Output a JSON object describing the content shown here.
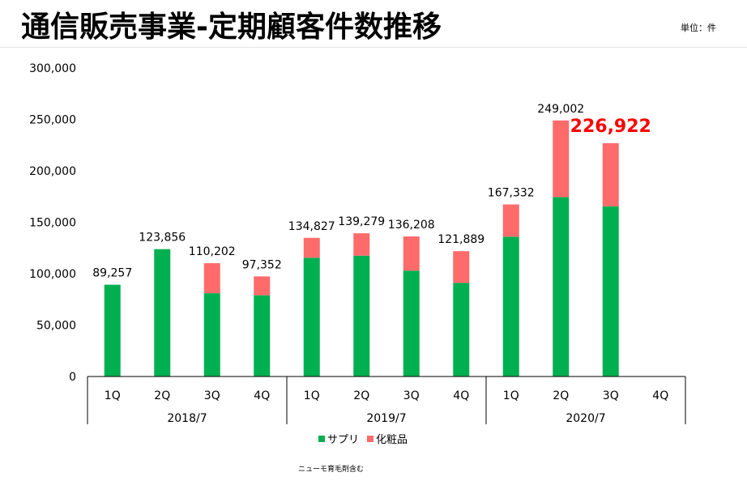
{
  "header": {
    "title": "通信販売事業-定期顧客件数推移",
    "unit": "単位：件"
  },
  "footer": {
    "note": "ニューモ育毛剤含む"
  },
  "chart_data": {
    "type": "bar",
    "stacked": true,
    "categories": [
      "1Q",
      "2Q",
      "3Q",
      "4Q",
      "1Q",
      "2Q",
      "3Q",
      "4Q",
      "1Q",
      "2Q",
      "3Q",
      "4Q"
    ],
    "groups": [
      {
        "label": "2018/7",
        "start": 0,
        "end": 3
      },
      {
        "label": "2019/7",
        "start": 4,
        "end": 7
      },
      {
        "label": "2020/7",
        "start": 8,
        "end": 11
      }
    ],
    "series": [
      {
        "name": "サプリ",
        "color": "#00b050",
        "values": [
          89257,
          123856,
          81000,
          79000,
          115500,
          117500,
          103000,
          91000,
          136000,
          174500,
          165500,
          null
        ]
      },
      {
        "name": "化粧品",
        "color": "#ff6b6b",
        "values": [
          0,
          0,
          29202,
          18352,
          19327,
          21779,
          33208,
          30889,
          31332,
          74502,
          61422,
          null
        ]
      }
    ],
    "totals": [
      "89,257",
      "123,856",
      "110,202",
      "97,352",
      "134,827",
      "139,279",
      "136,208",
      "121,889",
      "167,332",
      "249,002",
      "226,922",
      ""
    ],
    "highlight_index": 10,
    "highlight_color": "#ff0000",
    "y_ticks": [
      "0",
      "50,000",
      "100,000",
      "150,000",
      "200,000",
      "250,000",
      "300,000"
    ],
    "ylim": [
      0,
      300000
    ],
    "legend_position": "bottom-center"
  }
}
